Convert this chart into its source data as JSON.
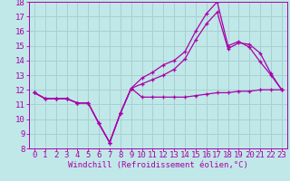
{
  "xlabel": "Windchill (Refroidissement éolien,°C)",
  "bg_color": "#c0e8e8",
  "grid_color": "#a8d0d0",
  "line_color": "#aa00aa",
  "ylim": [
    8,
    18
  ],
  "xlim": [
    -0.5,
    23.5
  ],
  "yticks": [
    8,
    9,
    10,
    11,
    12,
    13,
    14,
    15,
    16,
    17,
    18
  ],
  "xticks": [
    0,
    1,
    2,
    3,
    4,
    5,
    6,
    7,
    8,
    9,
    10,
    11,
    12,
    13,
    14,
    15,
    16,
    17,
    18,
    19,
    20,
    21,
    22,
    23
  ],
  "line1_x": [
    0,
    1,
    2,
    3,
    4,
    5,
    6,
    7,
    8,
    9,
    10,
    11,
    12,
    13,
    14,
    15,
    16,
    17,
    18,
    19,
    20,
    21,
    22,
    23
  ],
  "line1_y": [
    11.8,
    11.4,
    11.4,
    11.4,
    11.1,
    11.1,
    9.7,
    8.4,
    10.4,
    12.1,
    11.5,
    11.5,
    11.5,
    11.5,
    11.5,
    11.6,
    11.7,
    11.8,
    11.8,
    11.9,
    11.9,
    12.0,
    12.0,
    12.0
  ],
  "line2_x": [
    0,
    1,
    2,
    3,
    4,
    5,
    6,
    7,
    8,
    9,
    10,
    11,
    12,
    13,
    14,
    15,
    16,
    17,
    18,
    19,
    20,
    21,
    22,
    23
  ],
  "line2_y": [
    11.8,
    11.4,
    11.4,
    11.4,
    11.1,
    11.1,
    9.7,
    8.4,
    10.4,
    12.1,
    12.8,
    13.2,
    13.7,
    14.0,
    14.6,
    16.0,
    17.2,
    18.0,
    15.0,
    15.3,
    14.9,
    13.9,
    13.0,
    12.0
  ],
  "line3_x": [
    0,
    1,
    2,
    3,
    4,
    5,
    6,
    7,
    8,
    9,
    10,
    11,
    12,
    13,
    14,
    15,
    16,
    17,
    18,
    19,
    20,
    21,
    22,
    23
  ],
  "line3_y": [
    11.8,
    11.4,
    11.4,
    11.4,
    11.1,
    11.1,
    9.7,
    8.4,
    10.4,
    12.1,
    12.4,
    12.7,
    13.0,
    13.4,
    14.1,
    15.4,
    16.5,
    17.3,
    14.8,
    15.2,
    15.1,
    14.5,
    13.1,
    12.0
  ],
  "tick_fontsize": 6.5,
  "xlabel_fontsize": 6.5
}
